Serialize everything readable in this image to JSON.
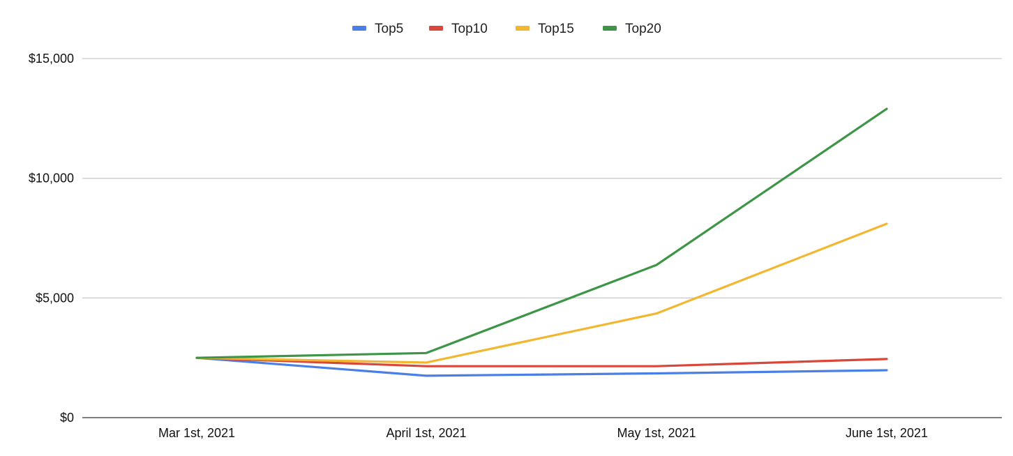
{
  "chart_data": {
    "type": "line",
    "title": "",
    "xlabel": "",
    "ylabel": "",
    "categories": [
      "Mar 1st, 2021",
      "April 1st, 2021",
      "May 1st, 2021",
      "June 1st, 2021"
    ],
    "series": [
      {
        "name": "Top5",
        "color": "#4a7fe6",
        "values": [
          2500,
          1750,
          1850,
          1980
        ]
      },
      {
        "name": "Top10",
        "color": "#d9463a",
        "values": [
          2500,
          2150,
          2150,
          2450
        ]
      },
      {
        "name": "Top15",
        "color": "#f2b731",
        "values": [
          2500,
          2300,
          4350,
          8100
        ]
      },
      {
        "name": "Top20",
        "color": "#3e9548",
        "values": [
          2500,
          2700,
          6380,
          12900
        ]
      }
    ],
    "ylim": [
      0,
      15000
    ],
    "yticks": [
      0,
      5000,
      10000,
      15000
    ],
    "ytick_labels": [
      "$0",
      "$5,000",
      "$10,000",
      "$15,000"
    ],
    "grid": true,
    "legend_position": "top-center"
  }
}
